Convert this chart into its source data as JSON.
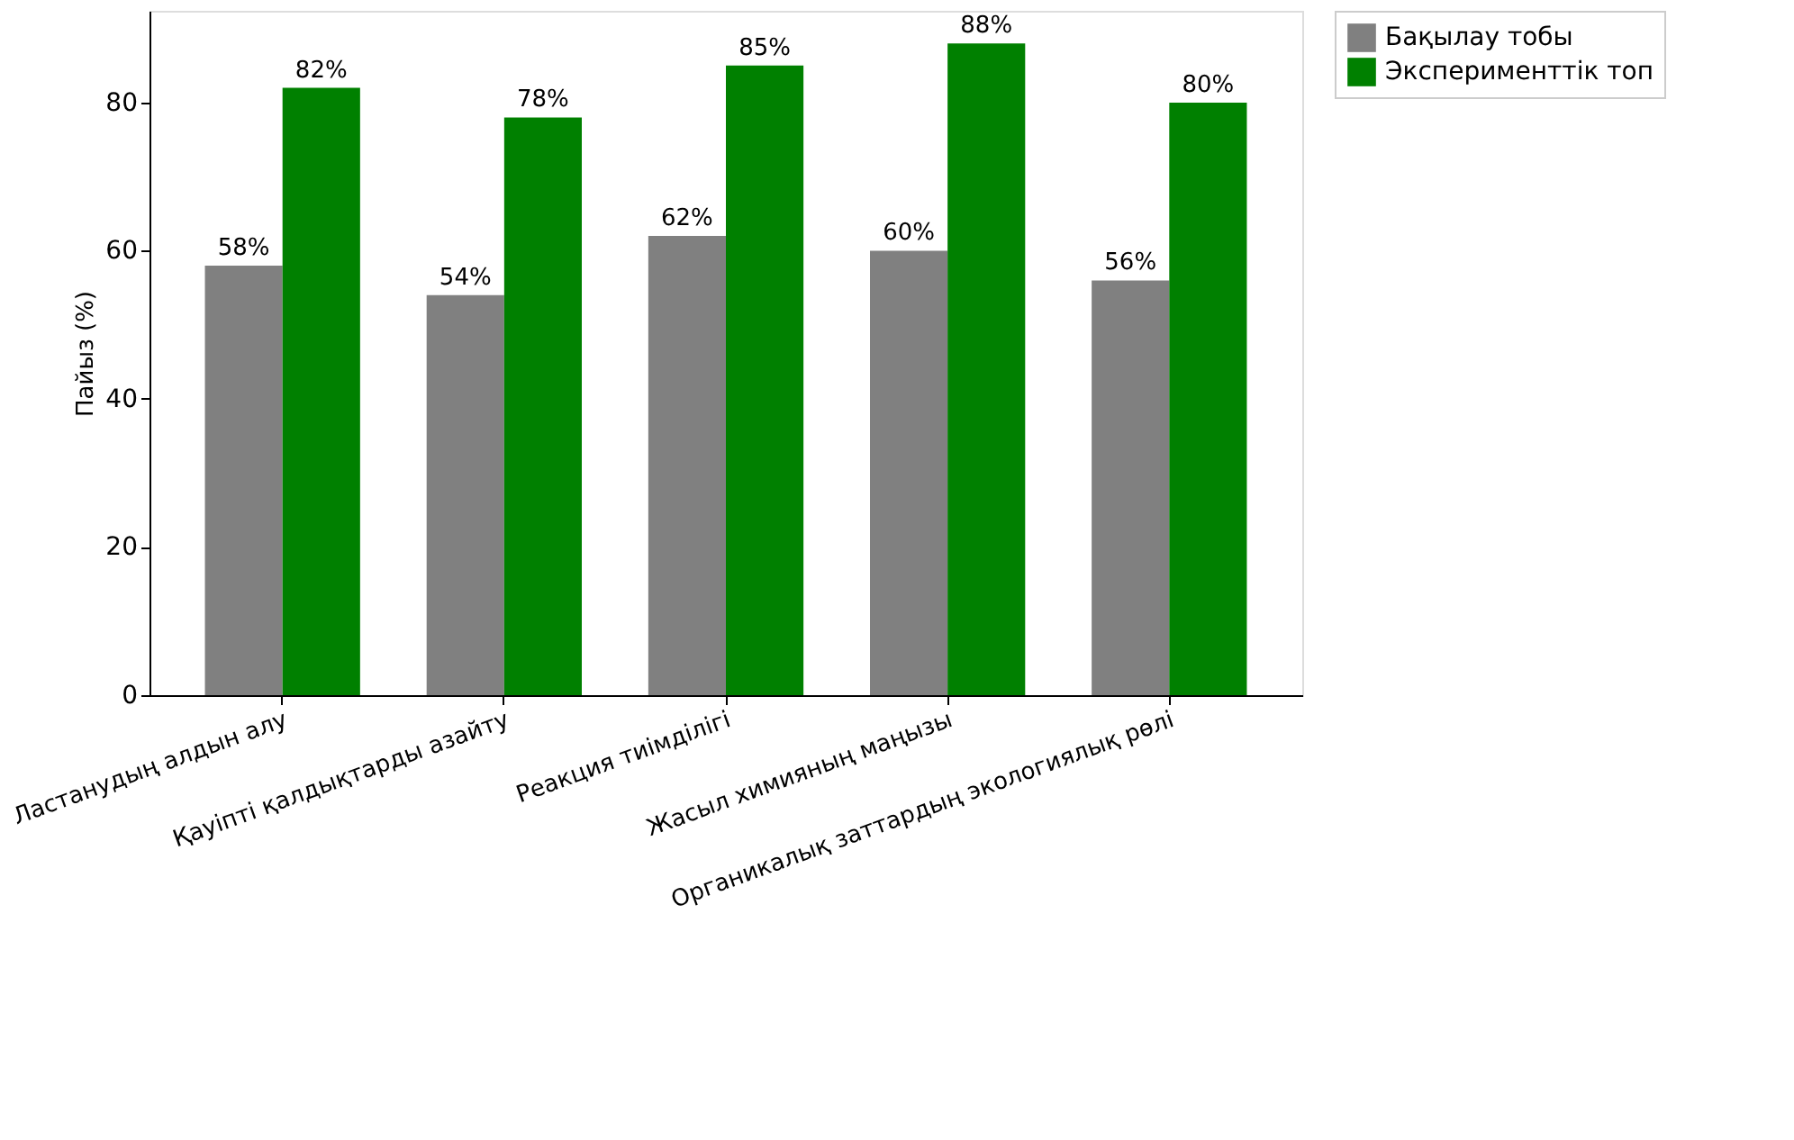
{
  "chart_data": {
    "type": "bar",
    "ylabel": "Пайыз (%)",
    "categories": [
      "Ластанудың алдын алу",
      "Қауіпті қалдықтарды азайту",
      "Реакция тиімділігі",
      "Жасыл химияның маңызы",
      "Органикалық заттардың экологиялық рөлі"
    ],
    "series": [
      {
        "name": "Бақылау тобы",
        "color": "#808080",
        "values": [
          58,
          54,
          62,
          60,
          56
        ],
        "value_labels": [
          "58%",
          "54%",
          "62%",
          "60%",
          "56%"
        ]
      },
      {
        "name": "Эксперименттік топ",
        "color": "#008000",
        "values": [
          82,
          78,
          85,
          88,
          80
        ],
        "value_labels": [
          "82%",
          "78%",
          "85%",
          "88%",
          "80%"
        ]
      }
    ],
    "ylim": [
      0,
      92.4
    ],
    "yticks": [
      0,
      20,
      40,
      60,
      80
    ],
    "grid": false,
    "legend": "top right"
  }
}
